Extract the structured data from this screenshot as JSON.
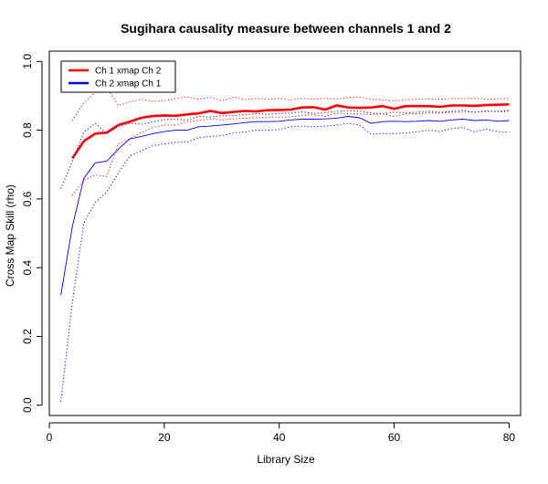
{
  "chart_data": {
    "type": "line",
    "title": "Sugihara causality measure between channels  1 and 2",
    "xlabel": "Library Size",
    "ylabel": "Cross Map Skill (rho)",
    "xlim": [
      0,
      82
    ],
    "ylim": [
      -0.03,
      1.03
    ],
    "xticks": [
      0,
      20,
      40,
      60,
      80
    ],
    "yticks": [
      0.0,
      0.2,
      0.4,
      0.6,
      0.8,
      1.0
    ],
    "grid": false,
    "legend_position": "top-left",
    "series": [
      {
        "name": "Ch 1 xmap Ch 2",
        "color": "#ff0000",
        "x": [
          4,
          6,
          8,
          10,
          12,
          14,
          16,
          18,
          20,
          22,
          24,
          26,
          28,
          30,
          32,
          34,
          36,
          38,
          40,
          42,
          44,
          46,
          48,
          50,
          52,
          54,
          56,
          58,
          60,
          62,
          64,
          66,
          68,
          70,
          72,
          74,
          76,
          78,
          80
        ],
        "mean": [
          0.718,
          0.768,
          0.79,
          0.793,
          0.815,
          0.825,
          0.836,
          0.841,
          0.843,
          0.842,
          0.846,
          0.849,
          0.856,
          0.85,
          0.853,
          0.856,
          0.855,
          0.858,
          0.859,
          0.86,
          0.866,
          0.867,
          0.86,
          0.872,
          0.866,
          0.865,
          0.866,
          0.87,
          0.862,
          0.87,
          0.87,
          0.87,
          0.868,
          0.872,
          0.872,
          0.871,
          0.873,
          0.874,
          0.875
        ],
        "upper": [
          0.828,
          0.88,
          0.91,
          0.925,
          0.872,
          0.882,
          0.89,
          0.884,
          0.886,
          0.892,
          0.897,
          0.89,
          0.895,
          0.886,
          0.896,
          0.889,
          0.892,
          0.89,
          0.892,
          0.888,
          0.893,
          0.89,
          0.893,
          0.89,
          0.895,
          0.896,
          0.89,
          0.888,
          0.885,
          0.889,
          0.89,
          0.891,
          0.89,
          0.892,
          0.892,
          0.893,
          0.89,
          0.891,
          0.892
        ],
        "lower": [
          0.61,
          0.655,
          0.67,
          0.665,
          0.76,
          0.775,
          0.793,
          0.808,
          0.815,
          0.815,
          0.825,
          0.828,
          0.833,
          0.83,
          0.833,
          0.835,
          0.836,
          0.838,
          0.838,
          0.839,
          0.843,
          0.845,
          0.84,
          0.85,
          0.847,
          0.848,
          0.845,
          0.848,
          0.84,
          0.847,
          0.848,
          0.85,
          0.85,
          0.852,
          0.853,
          0.853,
          0.855,
          0.854,
          0.855
        ]
      },
      {
        "name": "Ch 2  xmap Ch 1",
        "color": "#0000ff",
        "x": [
          2,
          4,
          6,
          8,
          10,
          12,
          14,
          16,
          18,
          20,
          22,
          24,
          26,
          28,
          30,
          32,
          34,
          36,
          38,
          40,
          42,
          44,
          46,
          48,
          50,
          52,
          54,
          56,
          58,
          60,
          62,
          64,
          66,
          68,
          70,
          72,
          74,
          76,
          78,
          80
        ],
        "mean": [
          0.32,
          0.52,
          0.66,
          0.705,
          0.71,
          0.745,
          0.775,
          0.782,
          0.79,
          0.796,
          0.8,
          0.8,
          0.81,
          0.812,
          0.815,
          0.818,
          0.822,
          0.825,
          0.825,
          0.826,
          0.83,
          0.832,
          0.832,
          0.833,
          0.835,
          0.84,
          0.836,
          0.82,
          0.825,
          0.826,
          0.825,
          0.826,
          0.828,
          0.826,
          0.83,
          0.832,
          0.828,
          0.83,
          0.826,
          0.828
        ],
        "upper": [
          0.63,
          0.71,
          0.795,
          0.82,
          0.79,
          0.81,
          0.82,
          0.817,
          0.824,
          0.831,
          0.832,
          0.83,
          0.84,
          0.838,
          0.842,
          0.842,
          0.846,
          0.848,
          0.846,
          0.849,
          0.85,
          0.853,
          0.849,
          0.851,
          0.855,
          0.857,
          0.856,
          0.85,
          0.848,
          0.852,
          0.851,
          0.852,
          0.855,
          0.852,
          0.855,
          0.858,
          0.852,
          0.856,
          0.855,
          0.858
        ],
        "lower": [
          0.01,
          0.3,
          0.53,
          0.59,
          0.62,
          0.675,
          0.725,
          0.74,
          0.755,
          0.76,
          0.765,
          0.766,
          0.778,
          0.782,
          0.784,
          0.792,
          0.795,
          0.8,
          0.8,
          0.802,
          0.81,
          0.812,
          0.81,
          0.812,
          0.815,
          0.82,
          0.815,
          0.788,
          0.79,
          0.79,
          0.792,
          0.795,
          0.8,
          0.796,
          0.805,
          0.808,
          0.795,
          0.803,
          0.796,
          0.795
        ]
      }
    ]
  }
}
